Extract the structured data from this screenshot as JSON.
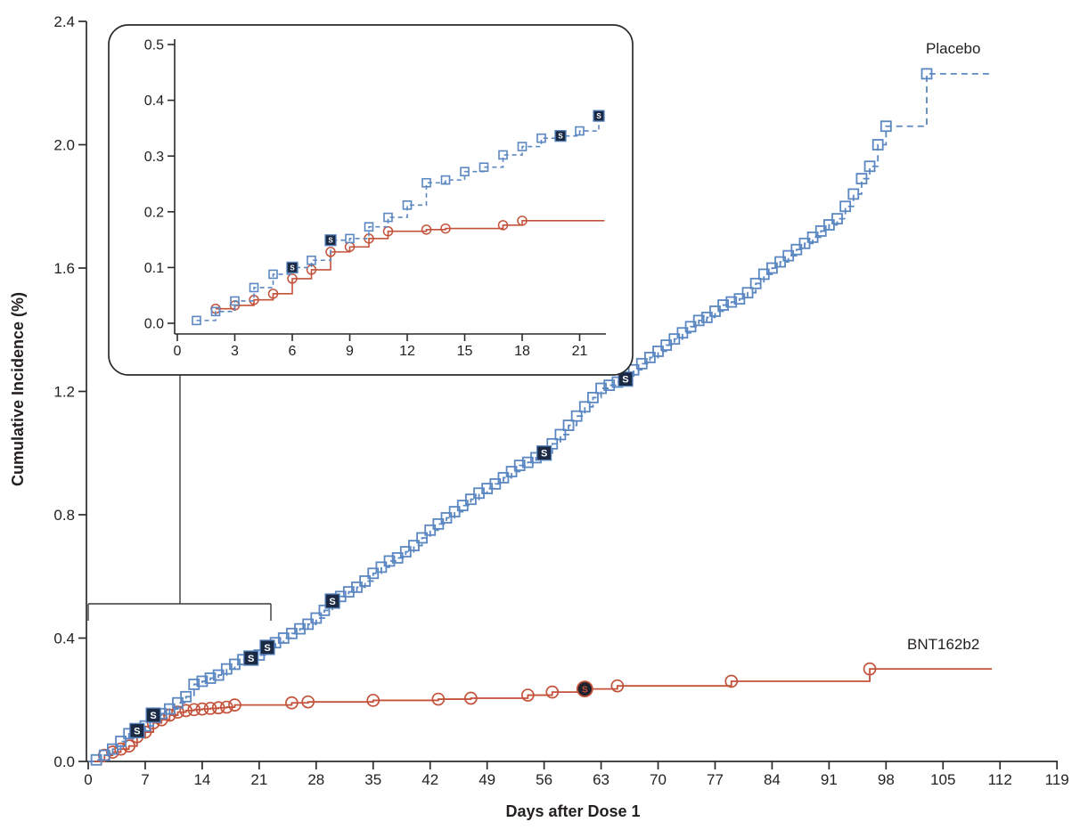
{
  "labels": {
    "placebo": "Placebo",
    "vaccine": "BNT162b2",
    "severe_marker_letter": "S"
  },
  "axis": {
    "x_title": "Days after Dose 1",
    "y_title": "Cumulative Incidence (%)"
  },
  "colors": {
    "placebo_blue": "#5b87c2",
    "vaccine_red": "#c4523a",
    "severe_navy": "#1b2a44",
    "severe_circle_fill": "#1d222e",
    "text": "#231f20",
    "axis": "#2b2b2b",
    "leader": "#3a3a3a"
  },
  "chart_data": {
    "type": "line",
    "subtype": "kaplan-meier-step-cumulative-incidence",
    "main": {
      "xlabel": "Days after Dose 1",
      "ylabel": "Cumulative Incidence (%)",
      "xlim": [
        0,
        119
      ],
      "ylim": [
        0,
        2.4
      ],
      "xticks": [
        0,
        7,
        14,
        21,
        28,
        35,
        42,
        49,
        56,
        63,
        70,
        77,
        84,
        91,
        98,
        105,
        112,
        119
      ],
      "yticks": [
        0.0,
        0.4,
        0.8,
        1.2,
        1.6,
        2.0,
        2.4
      ],
      "grid": false,
      "curve_end_day": 111,
      "series": [
        {
          "name": "Placebo",
          "line": "dashed",
          "marker": "open-square",
          "points": [
            [
              0,
              0
            ],
            [
              1,
              0.005
            ],
            [
              2,
              0.02
            ],
            [
              3,
              0.04
            ],
            [
              4,
              0.065
            ],
            [
              5,
              0.09
            ],
            [
              6,
              0.1
            ],
            [
              7,
              0.115
            ],
            [
              8,
              0.15
            ],
            [
              9,
              0.155
            ],
            [
              10,
              0.17
            ],
            [
              11,
              0.19
            ],
            [
              12,
              0.21
            ],
            [
              13,
              0.25
            ],
            [
              14,
              0.26
            ],
            [
              15,
              0.27
            ],
            [
              16,
              0.28
            ],
            [
              17,
              0.3
            ],
            [
              18,
              0.315
            ],
            [
              19,
              0.33
            ],
            [
              20,
              0.335
            ],
            [
              21,
              0.345
            ],
            [
              22,
              0.37
            ],
            [
              23,
              0.385
            ],
            [
              24,
              0.4
            ],
            [
              25,
              0.415
            ],
            [
              26,
              0.43
            ],
            [
              27,
              0.445
            ],
            [
              28,
              0.465
            ],
            [
              29,
              0.49
            ],
            [
              30,
              0.52
            ],
            [
              31,
              0.535
            ],
            [
              32,
              0.55
            ],
            [
              33,
              0.565
            ],
            [
              34,
              0.585
            ],
            [
              35,
              0.61
            ],
            [
              36,
              0.63
            ],
            [
              37,
              0.65
            ],
            [
              38,
              0.66
            ],
            [
              39,
              0.68
            ],
            [
              40,
              0.7
            ],
            [
              41,
              0.725
            ],
            [
              42,
              0.75
            ],
            [
              43,
              0.77
            ],
            [
              44,
              0.79
            ],
            [
              45,
              0.81
            ],
            [
              46,
              0.83
            ],
            [
              47,
              0.85
            ],
            [
              48,
              0.87
            ],
            [
              49,
              0.885
            ],
            [
              50,
              0.9
            ],
            [
              51,
              0.92
            ],
            [
              52,
              0.94
            ],
            [
              53,
              0.96
            ],
            [
              54,
              0.97
            ],
            [
              55,
              0.985
            ],
            [
              56,
              1.0
            ],
            [
              57,
              1.03
            ],
            [
              58,
              1.06
            ],
            [
              59,
              1.09
            ],
            [
              60,
              1.12
            ],
            [
              61,
              1.15
            ],
            [
              62,
              1.18
            ],
            [
              63,
              1.21
            ],
            [
              64,
              1.22
            ],
            [
              65,
              1.23
            ],
            [
              66,
              1.24
            ],
            [
              67,
              1.27
            ],
            [
              68,
              1.29
            ],
            [
              69,
              1.31
            ],
            [
              70,
              1.33
            ],
            [
              71,
              1.35
            ],
            [
              72,
              1.37
            ],
            [
              73,
              1.39
            ],
            [
              74,
              1.41
            ],
            [
              75,
              1.43
            ],
            [
              76,
              1.44
            ],
            [
              77,
              1.46
            ],
            [
              78,
              1.48
            ],
            [
              79,
              1.49
            ],
            [
              80,
              1.5
            ],
            [
              81,
              1.52
            ],
            [
              82,
              1.55
            ],
            [
              83,
              1.58
            ],
            [
              84,
              1.6
            ],
            [
              85,
              1.62
            ],
            [
              86,
              1.64
            ],
            [
              87,
              1.66
            ],
            [
              88,
              1.68
            ],
            [
              89,
              1.7
            ],
            [
              90,
              1.72
            ],
            [
              91,
              1.74
            ],
            [
              92,
              1.76
            ],
            [
              93,
              1.8
            ],
            [
              94,
              1.84
            ],
            [
              95,
              1.89
            ],
            [
              96,
              1.93
            ],
            [
              97,
              2.0
            ],
            [
              98,
              2.06
            ],
            [
              103,
              2.23
            ]
          ]
        },
        {
          "name": "BNT162b2",
          "line": "solid",
          "marker": "open-circle",
          "points": [
            [
              0,
              0
            ],
            [
              2,
              0.02
            ],
            [
              3,
              0.03
            ],
            [
              4,
              0.04
            ],
            [
              5,
              0.05
            ],
            [
              6,
              0.08
            ],
            [
              7,
              0.095
            ],
            [
              8,
              0.125
            ],
            [
              9,
              0.135
            ],
            [
              10,
              0.15
            ],
            [
              11,
              0.16
            ],
            [
              12,
              0.165
            ],
            [
              13,
              0.168
            ],
            [
              14,
              0.17
            ],
            [
              15,
              0.172
            ],
            [
              16,
              0.174
            ],
            [
              17,
              0.176
            ],
            [
              18,
              0.183
            ],
            [
              25,
              0.19
            ],
            [
              27,
              0.193
            ],
            [
              35,
              0.198
            ],
            [
              43,
              0.202
            ],
            [
              47,
              0.205
            ],
            [
              54,
              0.215
            ],
            [
              57,
              0.225
            ],
            [
              61,
              0.235
            ],
            [
              65,
              0.245
            ],
            [
              79,
              0.26
            ],
            [
              96,
              0.3
            ]
          ]
        }
      ],
      "severe_case_markers": {
        "placebo": [
          [
            6,
            0.1
          ],
          [
            8,
            0.15
          ],
          [
            20,
            0.335
          ],
          [
            22,
            0.37
          ],
          [
            30,
            0.52
          ],
          [
            56,
            1.0
          ],
          [
            66,
            1.24
          ]
        ],
        "bnt162b2": [
          [
            61,
            0.235
          ]
        ]
      }
    },
    "inset": {
      "xlim": [
        0,
        22.5
      ],
      "ylim": [
        0,
        0.5
      ],
      "xticks": [
        0,
        3,
        6,
        9,
        12,
        15,
        18,
        21
      ],
      "yticks": [
        0.0,
        0.1,
        0.2,
        0.3,
        0.4,
        0.5
      ],
      "grid": false,
      "curve_end_day": 22.3,
      "series": [
        {
          "name": "Placebo",
          "line": "dashed",
          "marker": "open-square",
          "points": [
            [
              1,
              0.005
            ],
            [
              2,
              0.021
            ],
            [
              3,
              0.04
            ],
            [
              4,
              0.064
            ],
            [
              5,
              0.088
            ],
            [
              6,
              0.1
            ],
            [
              7,
              0.113
            ],
            [
              8,
              0.149
            ],
            [
              9,
              0.152
            ],
            [
              10,
              0.173
            ],
            [
              11,
              0.19
            ],
            [
              12,
              0.212
            ],
            [
              13,
              0.252
            ],
            [
              14,
              0.257
            ],
            [
              15,
              0.272
            ],
            [
              16,
              0.28
            ],
            [
              17,
              0.302
            ],
            [
              18,
              0.317
            ],
            [
              19,
              0.332
            ],
            [
              20,
              0.336
            ],
            [
              21,
              0.345
            ],
            [
              22,
              0.372
            ]
          ]
        },
        {
          "name": "BNT162b2",
          "line": "solid",
          "marker": "open-circle",
          "points": [
            [
              2,
              0.026
            ],
            [
              3,
              0.032
            ],
            [
              4,
              0.042
            ],
            [
              5,
              0.053
            ],
            [
              6,
              0.08
            ],
            [
              7,
              0.096
            ],
            [
              8,
              0.128
            ],
            [
              9,
              0.137
            ],
            [
              10,
              0.152
            ],
            [
              11,
              0.165
            ],
            [
              13,
              0.168
            ],
            [
              14,
              0.17
            ],
            [
              17,
              0.176
            ],
            [
              18,
              0.184
            ]
          ]
        }
      ],
      "severe_case_markers": {
        "placebo": [
          [
            6,
            0.1
          ],
          [
            8,
            0.149
          ],
          [
            20,
            0.336
          ],
          [
            22,
            0.372
          ]
        ],
        "bnt162b2": []
      }
    }
  }
}
